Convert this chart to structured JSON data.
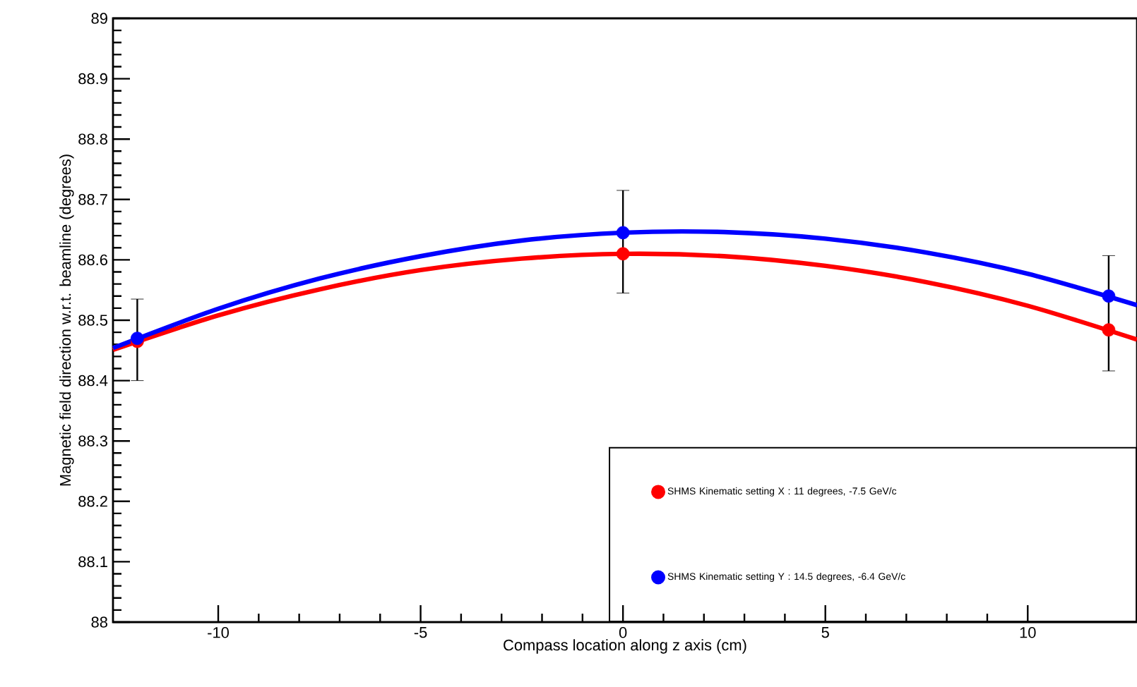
{
  "chart_data": {
    "type": "scatter",
    "xlabel": "Compass location along z axis (cm)",
    "ylabel": "Magnetic field direction w.r.t. beamline (degrees)",
    "xlim": [
      -12.6,
      12.7
    ],
    "ylim": [
      88,
      89
    ],
    "xticks": [
      -10,
      -5,
      0,
      5,
      10
    ],
    "yticks": [
      88,
      88.1,
      88.2,
      88.3,
      88.4,
      88.5,
      88.6,
      88.7,
      88.8,
      88.9,
      89
    ],
    "legend": "bottom right",
    "series": [
      {
        "type": "line",
        "marker": "none",
        "color": "#ff0000",
        "x": [
          -12.6,
          -10,
          -7.5,
          -5,
          -2.5,
          0,
          2.5,
          5,
          7.5,
          10,
          12.7
        ],
        "values": [
          88.451,
          88.508,
          88.551,
          88.583,
          88.602,
          88.61,
          88.606,
          88.59,
          88.563,
          88.524,
          88.468
        ]
      },
      {
        "type": "line",
        "marker": "none",
        "color": "#0000ff",
        "x": [
          -12.6,
          -10,
          -7.5,
          -5,
          -2.5,
          0,
          2.5,
          5,
          7.5,
          10,
          12.7
        ],
        "values": [
          88.454,
          88.519,
          88.569,
          88.606,
          88.632,
          88.645,
          88.646,
          88.635,
          88.612,
          88.577,
          88.525
        ]
      },
      {
        "marker": "circle",
        "name": "SHMS Kinematic setting X : 11 degrees, -7.5 GeV/c",
        "color": "#ff0000",
        "x": [
          -12,
          0,
          12
        ],
        "values": [
          88.465,
          88.61,
          88.484
        ]
      },
      {
        "marker": "circle",
        "name": "SHMS Kinematic setting Y : 14.5 degrees, -6.4 GeV/c",
        "color": "#0000ff",
        "x": [
          -12,
          0,
          12
        ],
        "values": [
          88.47,
          88.645,
          88.54
        ],
        "errors": [
          [
            88.4,
            88.535
          ],
          [
            88.545,
            88.715
          ],
          [
            88.416,
            88.607
          ]
        ]
      }
    ]
  }
}
